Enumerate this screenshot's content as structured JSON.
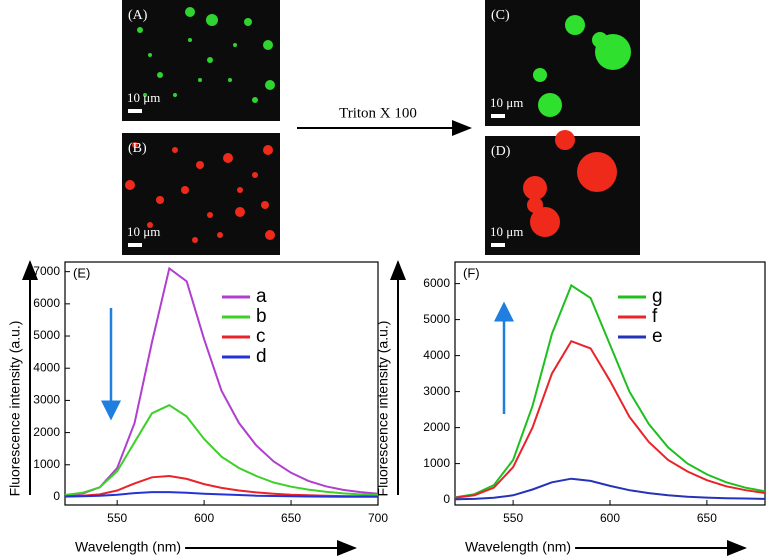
{
  "figure": {
    "images": [
      {
        "label": "(A)",
        "scale": "10 μm"
      },
      {
        "label": "(B)",
        "scale": "10 μm"
      },
      {
        "label": "(C)",
        "scale": "10 μm"
      },
      {
        "label": "(D)",
        "scale": "10 μm"
      }
    ],
    "arrow_label": "Triton X 100"
  },
  "chart_data": [
    {
      "type": "line",
      "title": "(E)",
      "x_label": "Wavelength (nm)",
      "y_label": "Fluorescence intensity (a.u.)",
      "x": [
        520,
        530,
        540,
        550,
        560,
        570,
        580,
        590,
        600,
        610,
        620,
        630,
        640,
        650,
        660,
        670,
        680,
        690,
        700
      ],
      "series": [
        {
          "name": "a",
          "color": "#b03fd0",
          "values": [
            50,
            100,
            300,
            900,
            2300,
            4800,
            7100,
            6700,
            4900,
            3300,
            2300,
            1600,
            1100,
            750,
            500,
            330,
            220,
            150,
            100
          ]
        },
        {
          "name": "b",
          "color": "#3fcf2a",
          "values": [
            60,
            130,
            300,
            800,
            1700,
            2600,
            2850,
            2500,
            1800,
            1250,
            900,
            650,
            450,
            320,
            230,
            160,
            110,
            80,
            60
          ]
        },
        {
          "name": "c",
          "color": "#e8242a",
          "values": [
            20,
            40,
            80,
            200,
            420,
            610,
            650,
            560,
            400,
            280,
            200,
            140,
            100,
            70,
            50,
            35,
            25,
            20,
            15
          ]
        },
        {
          "name": "d",
          "color": "#2433d8",
          "values": [
            10,
            20,
            40,
            70,
            120,
            150,
            150,
            130,
            100,
            80,
            60,
            40,
            30,
            20,
            15,
            10,
            8,
            5,
            5
          ]
        }
      ],
      "xlim": [
        520,
        700
      ],
      "xticks": [
        550,
        600,
        650,
        700
      ],
      "ylim": [
        -250,
        7300
      ],
      "yticks": [
        0,
        1000,
        2000,
        3000,
        4000,
        5000,
        6000,
        7000
      ]
    },
    {
      "type": "line",
      "title": "(F)",
      "x_label": "Wavelength (nm)",
      "y_label": "Fluorescence intensity (a.u.)",
      "x": [
        520,
        530,
        540,
        550,
        560,
        570,
        580,
        590,
        600,
        610,
        620,
        630,
        640,
        650,
        660,
        670,
        680
      ],
      "series": [
        {
          "name": "g",
          "color": "#1fbf1f",
          "values": [
            60,
            150,
            400,
            1100,
            2600,
            4600,
            5950,
            5600,
            4300,
            3000,
            2100,
            1450,
            1000,
            700,
            480,
            330,
            230
          ]
        },
        {
          "name": "f",
          "color": "#e8242a",
          "values": [
            50,
            120,
            330,
            900,
            2000,
            3500,
            4400,
            4200,
            3300,
            2300,
            1600,
            1100,
            780,
            540,
            370,
            260,
            180
          ]
        },
        {
          "name": "e",
          "color": "#2433b8",
          "values": [
            10,
            20,
            50,
            120,
            280,
            480,
            580,
            520,
            380,
            260,
            180,
            120,
            80,
            55,
            40,
            30,
            20
          ]
        }
      ],
      "xlim": [
        520,
        680
      ],
      "xticks": [
        550,
        600,
        650
      ],
      "ylim": [
        -150,
        6600
      ],
      "yticks": [
        0,
        1000,
        2000,
        3000,
        4000,
        5000,
        6000
      ]
    }
  ]
}
